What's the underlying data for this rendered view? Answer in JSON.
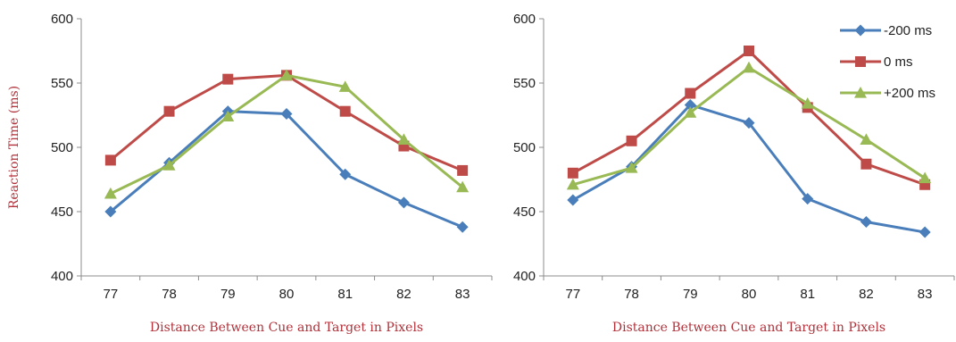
{
  "chart_data": [
    {
      "type": "line",
      "title": "",
      "xlabel": "Distance Between Cue and Target in Pixels",
      "ylabel": "Reaction Time (ms)",
      "ylim": [
        400,
        600
      ],
      "yticks": [
        400,
        450,
        500,
        550,
        600
      ],
      "categories": [
        "77",
        "78",
        "79",
        "80",
        "81",
        "82",
        "83"
      ],
      "grid": false,
      "legend": false,
      "series": [
        {
          "name": "-200 ms",
          "color": "#4a7ebb",
          "marker": "diamond",
          "values": [
            450,
            488,
            528,
            526,
            479,
            457,
            438
          ]
        },
        {
          "name": "0 ms",
          "color": "#be4b48",
          "marker": "square",
          "values": [
            490,
            528,
            553,
            556,
            528,
            501,
            482
          ]
        },
        {
          "name": "+200 ms",
          "color": "#98b954",
          "marker": "triangle",
          "values": [
            464,
            486,
            524,
            556,
            547,
            506,
            469
          ]
        }
      ]
    },
    {
      "type": "line",
      "title": "",
      "xlabel": "Distance Between Cue and Target in Pixels",
      "ylabel": "",
      "ylim": [
        400,
        600
      ],
      "yticks": [
        400,
        450,
        500,
        550,
        600
      ],
      "categories": [
        "77",
        "78",
        "79",
        "80",
        "81",
        "82",
        "83"
      ],
      "grid": false,
      "legend": "top-right",
      "series": [
        {
          "name": "-200 ms",
          "color": "#4a7ebb",
          "marker": "diamond",
          "values": [
            459,
            485,
            533,
            519,
            460,
            442,
            434
          ]
        },
        {
          "name": "0 ms",
          "color": "#be4b48",
          "marker": "square",
          "values": [
            480,
            505,
            542,
            575,
            531,
            487,
            471
          ]
        },
        {
          "name": "+200 ms",
          "color": "#98b954",
          "marker": "triangle",
          "values": [
            471,
            484,
            527,
            562,
            534,
            506,
            476
          ]
        }
      ]
    }
  ]
}
